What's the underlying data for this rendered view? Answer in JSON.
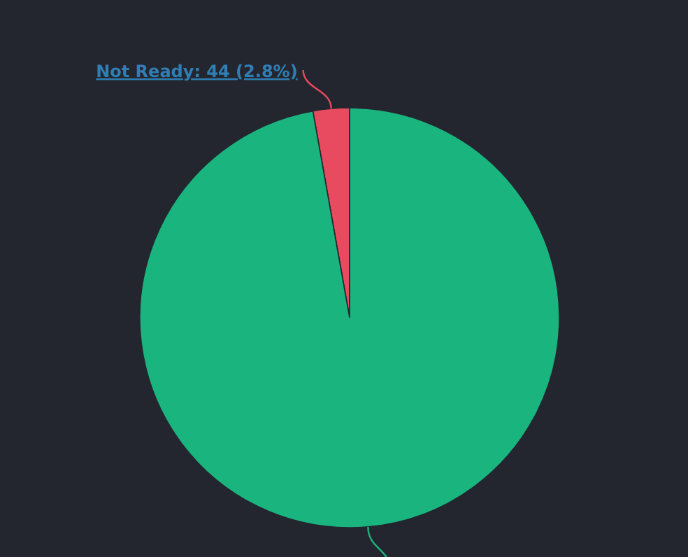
{
  "chart_data": {
    "type": "pie",
    "categories": [
      "Not Ready",
      null
    ],
    "values": [
      2.8,
      97.2
    ],
    "colors": [
      "#e84a5f",
      "#1ab57f"
    ],
    "value_labels": [
      "44 (2.8%)",
      null
    ]
  }
}
